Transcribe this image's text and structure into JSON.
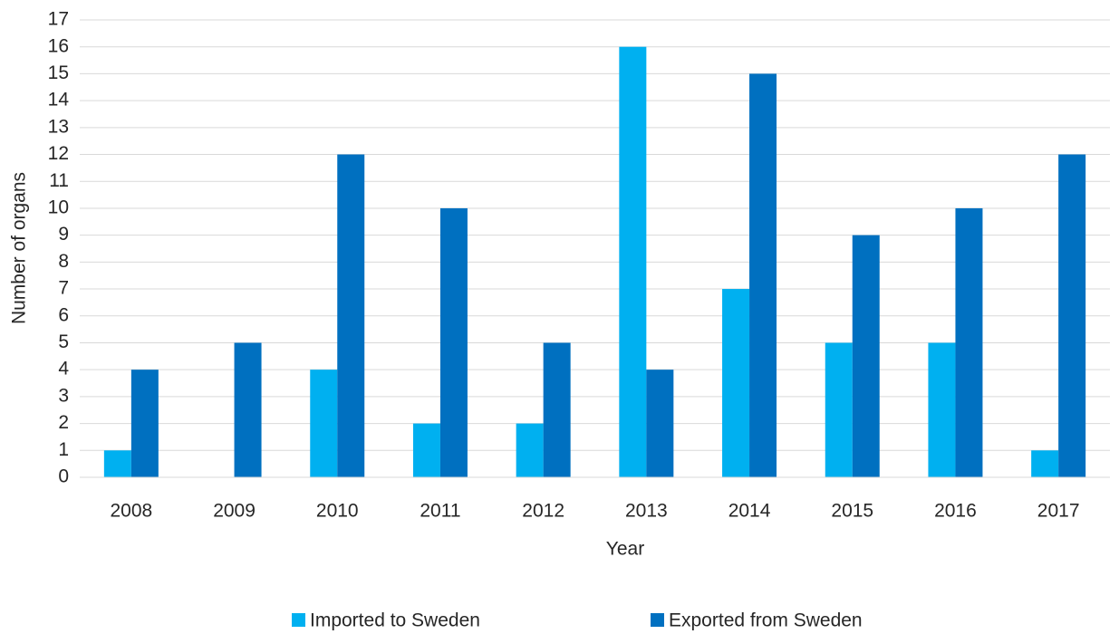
{
  "chart_data": {
    "type": "bar",
    "x_label": "Year",
    "y_label": "Number of organs",
    "categories": [
      "2008",
      "2009",
      "2010",
      "2011",
      "2012",
      "2013",
      "2014",
      "2015",
      "2016",
      "2017"
    ],
    "series": [
      {
        "name": "Imported to Sweden",
        "color": "#00b0f0",
        "values": [
          1,
          0,
          4,
          2,
          2,
          16,
          7,
          5,
          5,
          1
        ]
      },
      {
        "name": "Exported from Sweden",
        "color": "#0070c0",
        "values": [
          4,
          5,
          12,
          10,
          5,
          4,
          15,
          9,
          10,
          12
        ]
      }
    ],
    "ylim": [
      0,
      17
    ],
    "yticks": [
      0,
      1,
      2,
      3,
      4,
      5,
      6,
      7,
      8,
      9,
      10,
      11,
      12,
      13,
      14,
      15,
      16,
      17
    ],
    "grid": true,
    "legend": "bottom"
  }
}
